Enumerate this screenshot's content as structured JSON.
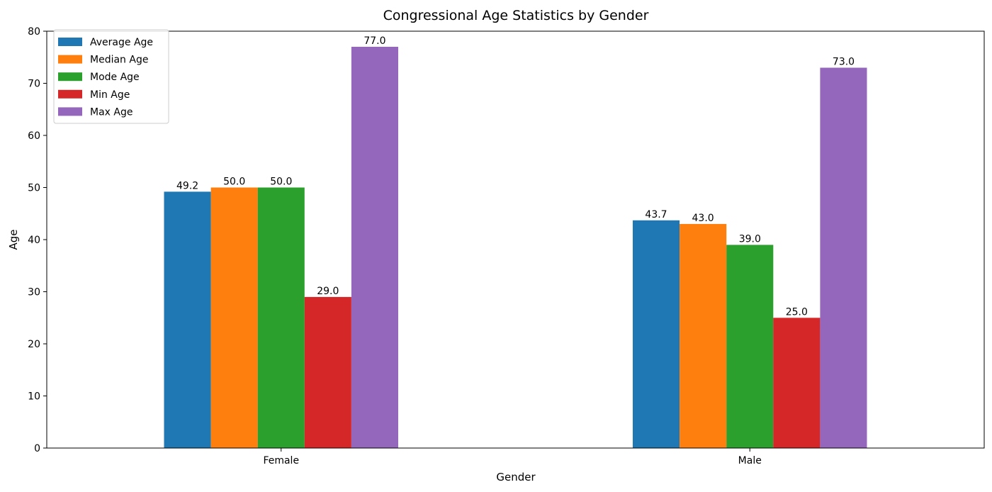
{
  "chart_data": {
    "type": "bar",
    "title": "Congressional Age Statistics by Gender",
    "xlabel": "Gender",
    "ylabel": "Age",
    "categories": [
      "Female",
      "Male"
    ],
    "ylim": [
      0,
      80
    ],
    "yticks": [
      0,
      10,
      20,
      30,
      40,
      50,
      60,
      70,
      80
    ],
    "grid": false,
    "legend_position": "top-left",
    "series": [
      {
        "name": "Average Age",
        "color": "#1f77b4",
        "values": [
          49.2,
          43.7
        ],
        "labels": [
          "49.2",
          "43.7"
        ]
      },
      {
        "name": "Median Age",
        "color": "#ff7f0e",
        "values": [
          50.0,
          43.0
        ],
        "labels": [
          "50.0",
          "43.0"
        ]
      },
      {
        "name": "Mode Age",
        "color": "#2ca02c",
        "values": [
          50.0,
          39.0
        ],
        "labels": [
          "50.0",
          "39.0"
        ]
      },
      {
        "name": "Min Age",
        "color": "#d62728",
        "values": [
          29.0,
          25.0
        ],
        "labels": [
          "29.0",
          "25.0"
        ]
      },
      {
        "name": "Max Age",
        "color": "#9467bd",
        "values": [
          77.0,
          73.0
        ],
        "labels": [
          "77.0",
          "73.0"
        ]
      }
    ]
  }
}
